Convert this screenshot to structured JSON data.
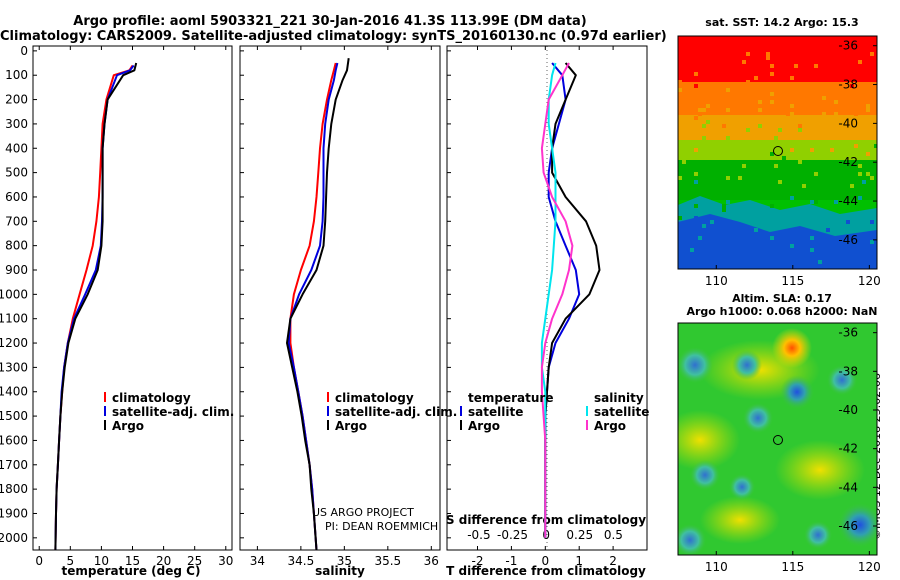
{
  "header": {
    "line1": "Argo profile: aoml 5903321_221 30-Jan-2016 41.3S 113.99E (DM data)",
    "line2": "Climatology: CARS2009. Satellite-adjusted climatology: synTS_20160130.nc (0.97d earlier)"
  },
  "colors": {
    "climatology": "#ff0000",
    "satellite": "#0000dd",
    "argo": "#000000",
    "sat_salinity": "#00e5ee",
    "argo_salinity": "#ff33cc"
  },
  "depth_ticks": [
    "0",
    "100",
    "200",
    "300",
    "400",
    "500",
    "600",
    "700",
    "800",
    "900",
    "1000",
    "1100",
    "1200",
    "1300",
    "1400",
    "1500",
    "1600",
    "1700",
    "1800",
    "1900",
    "2000"
  ],
  "chart_data": [
    {
      "type": "line",
      "xlabel": "temperature (deg C)",
      "xlim": [
        -1,
        31
      ],
      "ylim": [
        2050,
        -20
      ],
      "x_ticks": [
        "0",
        "5",
        "10",
        "15",
        "20",
        "25",
        "30"
      ],
      "series": [
        {
          "name": "climatology",
          "color": "#ff0000",
          "x": [
            15,
            14.5,
            12,
            10.8,
            10.2,
            10,
            9.8,
            9.6,
            9.2,
            8.6,
            7.6,
            6.5,
            5.4,
            4.6,
            4,
            3.7,
            3.4,
            3.2,
            3,
            2.8,
            2.7,
            2.6
          ],
          "y": [
            60,
            80,
            100,
            200,
            300,
            400,
            500,
            600,
            700,
            800,
            900,
            1000,
            1100,
            1200,
            1300,
            1400,
            1500,
            1600,
            1700,
            1800,
            1900,
            2050
          ]
        },
        {
          "name": "satellite-adj. clim.",
          "color": "#0000dd",
          "x": [
            15.2,
            14.6,
            12.5,
            11,
            10.5,
            10.2,
            10.2,
            10.2,
            10.1,
            9.9,
            9.1,
            7.4,
            5.6,
            4.6,
            4,
            3.6,
            3.4,
            3.2,
            3,
            2.8,
            2.7,
            2.6
          ],
          "y": [
            60,
            80,
            100,
            200,
            300,
            400,
            500,
            600,
            700,
            800,
            900,
            1000,
            1100,
            1200,
            1300,
            1400,
            1500,
            1600,
            1700,
            1800,
            1900,
            2050
          ]
        },
        {
          "name": "Argo",
          "color": "#000000",
          "x": [
            15.6,
            15.3,
            13.5,
            11,
            10.5,
            10.2,
            10.2,
            10.2,
            10.2,
            10,
            9.4,
            7.8,
            5.8,
            4.7,
            4.1,
            3.7,
            3.4,
            3.2,
            3,
            2.8,
            2.7,
            2.6
          ],
          "y": [
            50,
            80,
            100,
            200,
            300,
            400,
            500,
            600,
            700,
            800,
            900,
            1000,
            1100,
            1200,
            1300,
            1400,
            1500,
            1600,
            1700,
            1800,
            1900,
            2050
          ]
        }
      ]
    },
    {
      "type": "line",
      "xlabel": "salinity",
      "xlim": [
        33.8,
        36.1
      ],
      "ylim": [
        2050,
        -20
      ],
      "x_ticks": [
        "34",
        "34.5",
        "35",
        "35.5",
        "36"
      ],
      "series": [
        {
          "name": "climatology",
          "color": "#ff0000",
          "x": [
            34.9,
            34.88,
            34.85,
            34.8,
            34.75,
            34.72,
            34.7,
            34.68,
            34.65,
            34.6,
            34.5,
            34.42,
            34.38,
            34.38,
            34.42,
            34.47,
            34.52,
            34.56,
            34.6,
            34.63,
            34.65,
            34.68
          ],
          "y": [
            50,
            80,
            120,
            200,
            300,
            400,
            500,
            600,
            700,
            800,
            900,
            1000,
            1100,
            1200,
            1300,
            1400,
            1500,
            1600,
            1700,
            1800,
            1900,
            2050
          ]
        },
        {
          "name": "satellite-adj. clim.",
          "color": "#0000dd",
          "x": [
            34.92,
            34.9,
            34.88,
            34.82,
            34.78,
            34.76,
            34.76,
            34.76,
            34.75,
            34.72,
            34.62,
            34.48,
            34.38,
            34.36,
            34.42,
            34.47,
            34.52,
            34.56,
            34.6,
            34.63,
            34.65,
            34.68
          ],
          "y": [
            50,
            80,
            120,
            200,
            300,
            400,
            500,
            600,
            700,
            800,
            900,
            1000,
            1100,
            1200,
            1300,
            1400,
            1500,
            1600,
            1700,
            1800,
            1900,
            2050
          ]
        },
        {
          "name": "Argo",
          "color": "#000000",
          "x": [
            35.05,
            35.03,
            34.98,
            34.9,
            34.85,
            34.82,
            34.8,
            34.79,
            34.78,
            34.76,
            34.68,
            34.52,
            34.38,
            34.34,
            34.4,
            34.46,
            34.51,
            34.55,
            34.6,
            34.62,
            34.65,
            34.68
          ],
          "y": [
            30,
            80,
            120,
            200,
            300,
            400,
            500,
            600,
            700,
            800,
            900,
            1000,
            1100,
            1200,
            1300,
            1400,
            1500,
            1600,
            1700,
            1800,
            1900,
            2050
          ]
        }
      ]
    },
    {
      "type": "line",
      "xlabel": "T difference from climatology",
      "xlabel_top": "S difference from climatology",
      "xlim": [
        -2.9,
        3.0
      ],
      "ylim": [
        2050,
        -20
      ],
      "x_ticks": [
        "-2",
        "-1",
        "0",
        "1",
        "2"
      ],
      "x_ticks_top": [
        "-0.5",
        "-0.25",
        "0",
        "0.25",
        "0.5"
      ],
      "series": [
        {
          "name": "temperature satellite",
          "color": "#0000dd",
          "x": [
            0.2,
            0.5,
            0.6,
            0.4,
            0.2,
            0.1,
            0.1,
            0.3,
            0.6,
            0.9,
            1.0,
            0.7,
            0.3,
            0.1,
            0.05,
            0.0,
            0.0,
            0.0,
            0.0,
            0.0,
            0.0
          ],
          "y": [
            50,
            100,
            200,
            300,
            400,
            500,
            600,
            700,
            800,
            900,
            1000,
            1100,
            1200,
            1300,
            1400,
            1500,
            1600,
            1700,
            1800,
            1900,
            2000
          ]
        },
        {
          "name": "temperature Argo",
          "color": "#000000",
          "x": [
            0.6,
            0.9,
            0.6,
            0.3,
            0.2,
            0.2,
            0.6,
            1.2,
            1.5,
            1.6,
            1.3,
            0.6,
            0.2,
            0.1,
            0.05,
            0.0,
            0.0,
            0.0,
            0.0,
            0.0,
            0.0
          ],
          "y": [
            50,
            100,
            200,
            300,
            400,
            500,
            600,
            700,
            800,
            900,
            1000,
            1100,
            1200,
            1300,
            1400,
            1500,
            1600,
            1700,
            1800,
            1900,
            2000
          ]
        },
        {
          "name": "salinity satellite",
          "color": "#00e5ee",
          "x": [
            0.3,
            0.2,
            0.1,
            0.1,
            0.2,
            0.3,
            0.3,
            0.3,
            0.25,
            0.2,
            0.1,
            0.0,
            -0.1,
            -0.1,
            0.0,
            0.0,
            0.0,
            0.0,
            0.0,
            0.0,
            0.0
          ],
          "y": [
            50,
            100,
            200,
            300,
            400,
            500,
            600,
            700,
            800,
            900,
            1000,
            1100,
            1200,
            1300,
            1400,
            1500,
            1600,
            1700,
            1800,
            1900,
            2000
          ]
        },
        {
          "name": "salinity Argo",
          "color": "#ff33cc",
          "x": [
            0.7,
            0.5,
            0.1,
            0.0,
            -0.1,
            -0.05,
            0.2,
            0.6,
            0.8,
            0.7,
            0.5,
            0.2,
            0.0,
            -0.1,
            -0.1,
            -0.05,
            0.0,
            0.0,
            0.0,
            0.0,
            0.0
          ],
          "y": [
            50,
            100,
            200,
            300,
            400,
            500,
            600,
            700,
            800,
            900,
            1000,
            1100,
            1200,
            1300,
            1400,
            1500,
            1600,
            1700,
            1800,
            1900,
            2000
          ]
        }
      ]
    },
    {
      "type": "heatmap",
      "title": "sat. SST: 14.2 Argo: 15.3",
      "x_ticks": [
        "110",
        "115",
        "120"
      ],
      "y_ticks": [
        "-36",
        "-38",
        "-40",
        "-42",
        "-44",
        "-46"
      ],
      "xlim": [
        107.5,
        120.5
      ],
      "ylim": [
        -47.5,
        -35.5
      ],
      "marker": {
        "lon": 114,
        "lat": -41.3
      }
    },
    {
      "type": "heatmap",
      "title_line1": "Altim. SLA: 0.17",
      "title_line2": "Argo h1000: 0.068 h2000: NaN",
      "x_ticks": [
        "110",
        "115",
        "120"
      ],
      "y_ticks": [
        "-36",
        "-38",
        "-40",
        "-42",
        "-44",
        "-46"
      ],
      "xlim": [
        107.5,
        120.5
      ],
      "ylim": [
        -47.5,
        -35.5
      ],
      "marker": {
        "lon": 114,
        "lat": -41.3
      }
    }
  ],
  "legend_t": [
    "climatology",
    "satellite-adj. clim.",
    "Argo"
  ],
  "legend_s": [
    "climatology",
    "satellite-adj. clim.",
    "Argo"
  ],
  "legend_diff": {
    "temp_head": "temperature",
    "temp_sat": "satellite",
    "temp_argo": "Argo",
    "sal_head": "salinity",
    "sal_sat": "satellite",
    "sal_argo": "Argo"
  },
  "credit": {
    "line1": "US ARGO PROJECT",
    "line2": "PI: DEAN ROEMMICH"
  },
  "stamp": "©IMOS 12-Dec-2018 23:02:06"
}
